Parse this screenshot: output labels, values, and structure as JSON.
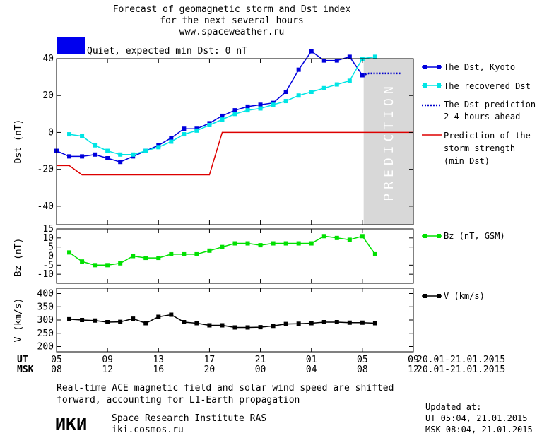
{
  "header": {
    "title_line1": "Forecast of geomagnetic storm and Dst index",
    "title_line2": "for the next several hours",
    "site": "www.spaceweather.ru",
    "status_label": "Quiet, expected min Dst: 0 nT",
    "status_color": "#0000ee"
  },
  "footer": {
    "note_line1": "Real-time ACE magnetic field and solar wind speed are shifted",
    "note_line2": "forward, accounting for L1-Earth propagation",
    "logo_text": "ИКИ",
    "org_name": "Space Research Institute RAS",
    "org_site": "iki.cosmos.ru",
    "updated_label": "Updated at:",
    "updated_ut": "UT   05:04, 21.01.2015",
    "updated_msk": "MSK 08:04, 21.01.2015"
  },
  "time_axis": {
    "ut_label": "UT",
    "msk_label": "MSK",
    "ut_ticks": [
      "05",
      "09",
      "13",
      "17",
      "21",
      "01",
      "05",
      "09"
    ],
    "msk_ticks": [
      "08",
      "12",
      "16",
      "20",
      "00",
      "04",
      "08",
      "12"
    ],
    "ut_range": "20.01-21.01.2015",
    "msk_range": "20.01-21.01.2015",
    "xlim": [
      5,
      33
    ]
  },
  "chart_data": [
    {
      "type": "line",
      "ylabel": "Dst (nT)",
      "ylim": [
        -50,
        40
      ],
      "yticks": [
        -40,
        -20,
        0,
        20,
        40
      ],
      "prediction_band": {
        "x": [
          29.1,
          33
        ],
        "label": "PREDICTION",
        "color": "#d8d8d8"
      },
      "series": [
        {
          "name": "The Dst, Kyoto",
          "color": "#0000dd",
          "marker": "square",
          "x": [
            5,
            6,
            7,
            8,
            9,
            10,
            11,
            12,
            13,
            14,
            15,
            16,
            17,
            18,
            19,
            20,
            21,
            22,
            23,
            24,
            25,
            26,
            27,
            28,
            29
          ],
          "y": [
            -10,
            -13,
            -13,
            -12,
            -14,
            -16,
            -13,
            -10,
            -7,
            -3,
            2,
            2,
            5,
            9,
            12,
            14,
            15,
            16,
            22,
            34,
            44,
            39,
            39,
            41,
            31
          ]
        },
        {
          "name": "The recovered Dst",
          "color": "#00e5e5",
          "marker": "square",
          "x": [
            6,
            7,
            8,
            9,
            10,
            11,
            12,
            13,
            14,
            15,
            16,
            17,
            18,
            19,
            20,
            21,
            22,
            23,
            24,
            25,
            26,
            27,
            28,
            29,
            30
          ],
          "y": [
            -1,
            -2,
            -7,
            -10,
            -12,
            -12,
            -10,
            -8,
            -5,
            -1,
            1,
            4,
            7,
            10,
            12,
            13,
            15,
            17,
            20,
            22,
            24,
            26,
            28,
            40,
            41
          ]
        },
        {
          "name": "The Dst prediction",
          "name_line2": "2-4 hours ahead",
          "color": "#0000cc",
          "style": "dotted",
          "x": [
            29,
            29.5,
            30,
            31,
            32
          ],
          "y": [
            31,
            32,
            32,
            32,
            32
          ]
        },
        {
          "name": "Prediction of the",
          "name_line2": "storm strength",
          "name_line3": "(min Dst)",
          "color": "#dd0000",
          "style": "step",
          "x": [
            5,
            6,
            7,
            17,
            18,
            33
          ],
          "y": [
            -18,
            -18,
            -23,
            -23,
            0,
            0
          ]
        }
      ]
    },
    {
      "type": "line",
      "ylabel": "Bz (nT)",
      "ylim": [
        -15,
        15
      ],
      "yticks": [
        15,
        10,
        5,
        0,
        -5,
        -10
      ],
      "series": [
        {
          "name": "Bz (nT, GSM)",
          "color": "#00e000",
          "marker": "square",
          "x": [
            6,
            7,
            8,
            9,
            10,
            11,
            12,
            13,
            14,
            15,
            16,
            17,
            18,
            19,
            20,
            21,
            22,
            23,
            24,
            25,
            26,
            27,
            28,
            29,
            30
          ],
          "y": [
            2,
            -3,
            -5,
            -5,
            -4,
            0,
            -1,
            -1,
            1,
            1,
            1,
            3,
            5,
            7,
            7,
            6,
            7,
            7,
            7,
            7,
            11,
            10,
            9,
            11,
            1
          ]
        }
      ]
    },
    {
      "type": "line",
      "ylabel": "V (km/s)",
      "ylim": [
        180,
        420
      ],
      "yticks": [
        400,
        350,
        300,
        250,
        200
      ],
      "series": [
        {
          "name": "V (km/s)",
          "color": "#000000",
          "marker": "square",
          "x": [
            6,
            7,
            8,
            9,
            10,
            11,
            12,
            13,
            14,
            15,
            16,
            17,
            18,
            19,
            20,
            21,
            22,
            23,
            24,
            25,
            26,
            27,
            28,
            29,
            30
          ],
          "y": [
            303,
            300,
            298,
            292,
            293,
            305,
            288,
            312,
            320,
            292,
            288,
            280,
            280,
            272,
            272,
            273,
            278,
            285,
            286,
            288,
            292,
            292,
            290,
            290,
            288
          ]
        }
      ]
    }
  ]
}
